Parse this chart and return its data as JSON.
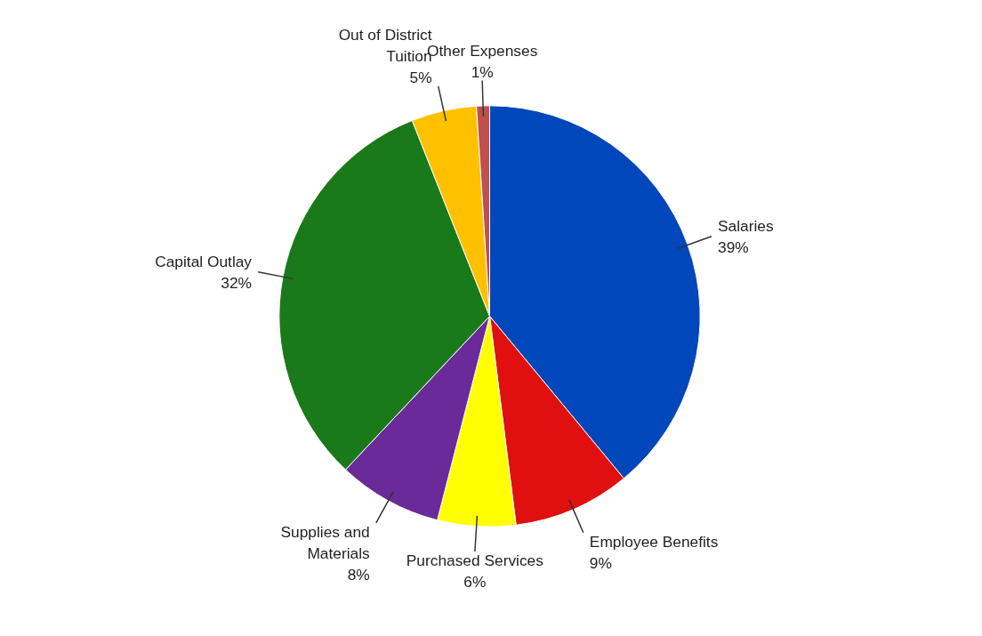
{
  "chart_data": {
    "type": "pie",
    "categories": [
      "Salaries",
      "Employee Benefits",
      "Purchased Services",
      "Supplies and Materials",
      "Capital Outlay",
      "Out of District Tuition",
      "Other Expenses"
    ],
    "values": [
      39,
      9,
      6,
      8,
      32,
      5,
      1
    ],
    "value_labels": [
      "39%",
      "9%",
      "6%",
      "8%",
      "32%",
      "5%",
      "1%"
    ],
    "colors": [
      "#0047bb",
      "#e01010",
      "#ffff00",
      "#6a2a9a",
      "#1a7a1a",
      "#ffc000",
      "#c0504d"
    ]
  }
}
